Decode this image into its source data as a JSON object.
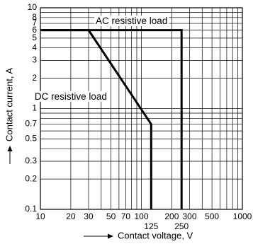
{
  "chart_data": {
    "type": "line",
    "xscale": "log",
    "yscale": "log",
    "xlim": [
      10,
      1000
    ],
    "ylim": [
      0.1,
      10
    ],
    "grid": true,
    "xlabel": "Contact voltage, V",
    "ylabel": "Contact current, A",
    "x_ticks": [
      {
        "value": 10,
        "label": "10"
      },
      {
        "value": 20,
        "label": "20"
      },
      {
        "value": 30,
        "label": "30"
      },
      {
        "value": 50,
        "label": "50"
      },
      {
        "value": 70,
        "label": "70"
      },
      {
        "value": 100,
        "label": "100"
      },
      {
        "value": 200,
        "label": "200"
      },
      {
        "value": 300,
        "label": "300"
      },
      {
        "value": 500,
        "label": "500"
      },
      {
        "value": 1000,
        "label": "1000"
      }
    ],
    "x_ticks_lower": [
      {
        "value": 125,
        "label": "125"
      },
      {
        "value": 250,
        "label": "250"
      }
    ],
    "y_ticks": [
      {
        "value": 0.1,
        "label": "0.1"
      },
      {
        "value": 0.2,
        "label": "0.2"
      },
      {
        "value": 0.3,
        "label": "0.3"
      },
      {
        "value": 0.5,
        "label": "0.5"
      },
      {
        "value": 0.7,
        "label": "0.7"
      },
      {
        "value": 1,
        "label": "1"
      },
      {
        "value": 2,
        "label": "2"
      },
      {
        "value": 3,
        "label": "3"
      },
      {
        "value": 4,
        "label": "4"
      },
      {
        "value": 5,
        "label": "5"
      },
      {
        "value": 6,
        "label": "6"
      },
      {
        "value": 7,
        "label": "7"
      },
      {
        "value": 8,
        "label": "8"
      },
      {
        "value": 10,
        "label": "10"
      }
    ],
    "series": [
      {
        "name": "AC resistive load",
        "points": [
          [
            10,
            6
          ],
          [
            250,
            6
          ],
          [
            250,
            0.1
          ]
        ]
      },
      {
        "name": "DC resistive load",
        "points": [
          [
            10,
            6
          ],
          [
            30,
            6
          ],
          [
            125,
            0.7
          ],
          [
            125,
            0.1
          ]
        ]
      }
    ],
    "annotations": [
      {
        "text": "AC resistive load",
        "x": 80,
        "y": 7.3
      },
      {
        "text": "DC resistive load",
        "x": 20,
        "y": 1.3
      }
    ]
  }
}
